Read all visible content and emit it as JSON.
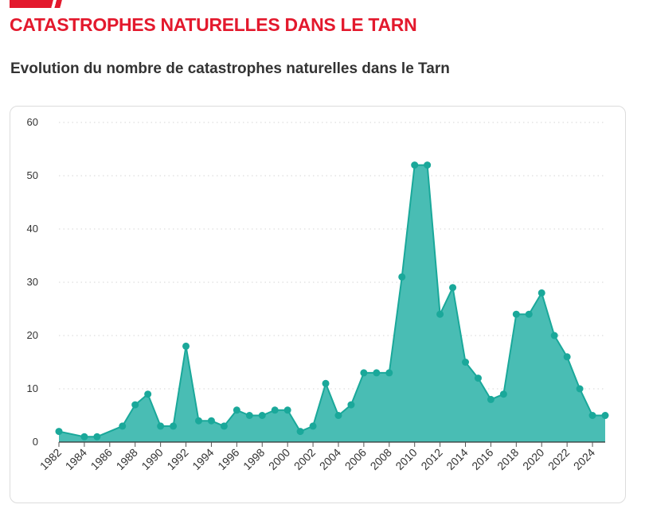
{
  "header": {
    "title": "CATASTROPHES NATURELLES DANS LE TARN",
    "accent_color": "#e3192d"
  },
  "chart_title": "Evolution du nombre de catastrophes naturelles dans le Tarn",
  "chart_data": {
    "type": "area",
    "title": "Evolution du nombre de catastrophes naturelles dans le Tarn",
    "xlabel": "",
    "ylabel": "",
    "x": [
      1982,
      1983,
      1984,
      1985,
      1986,
      1987,
      1988,
      1989,
      1990,
      1991,
      1992,
      1993,
      1994,
      1995,
      1996,
      1997,
      1998,
      1999,
      2000,
      2001,
      2002,
      2003,
      2004,
      2005,
      2006,
      2007,
      2008,
      2009,
      2010,
      2011,
      2012,
      2013,
      2014,
      2015,
      2016,
      2017,
      2018,
      2019,
      2020,
      2021,
      2022,
      2023,
      2024,
      2025
    ],
    "series": [
      {
        "values": [
          2,
          null,
          1,
          1,
          null,
          3,
          7,
          9,
          3,
          3,
          18,
          4,
          4,
          3,
          6,
          5,
          5,
          6,
          6,
          2,
          3,
          11,
          5,
          7,
          13,
          13,
          13,
          31,
          52,
          52,
          24,
          29,
          15,
          12,
          8,
          9,
          24,
          24,
          28,
          20,
          16,
          10,
          5,
          5
        ],
        "color": "#1aa89a",
        "fill": "#49bdb4"
      }
    ],
    "xticks": [
      1982,
      1984,
      1986,
      1988,
      1990,
      1992,
      1994,
      1996,
      1998,
      2000,
      2002,
      2004,
      2006,
      2008,
      2010,
      2012,
      2014,
      2016,
      2018,
      2020,
      2022,
      2024
    ],
    "yticks": [
      0,
      10,
      20,
      30,
      40,
      50,
      60
    ],
    "ylim": [
      0,
      60
    ],
    "xlim": [
      1982,
      2025
    ],
    "grid": "horizontal dotted",
    "legend": "none"
  }
}
